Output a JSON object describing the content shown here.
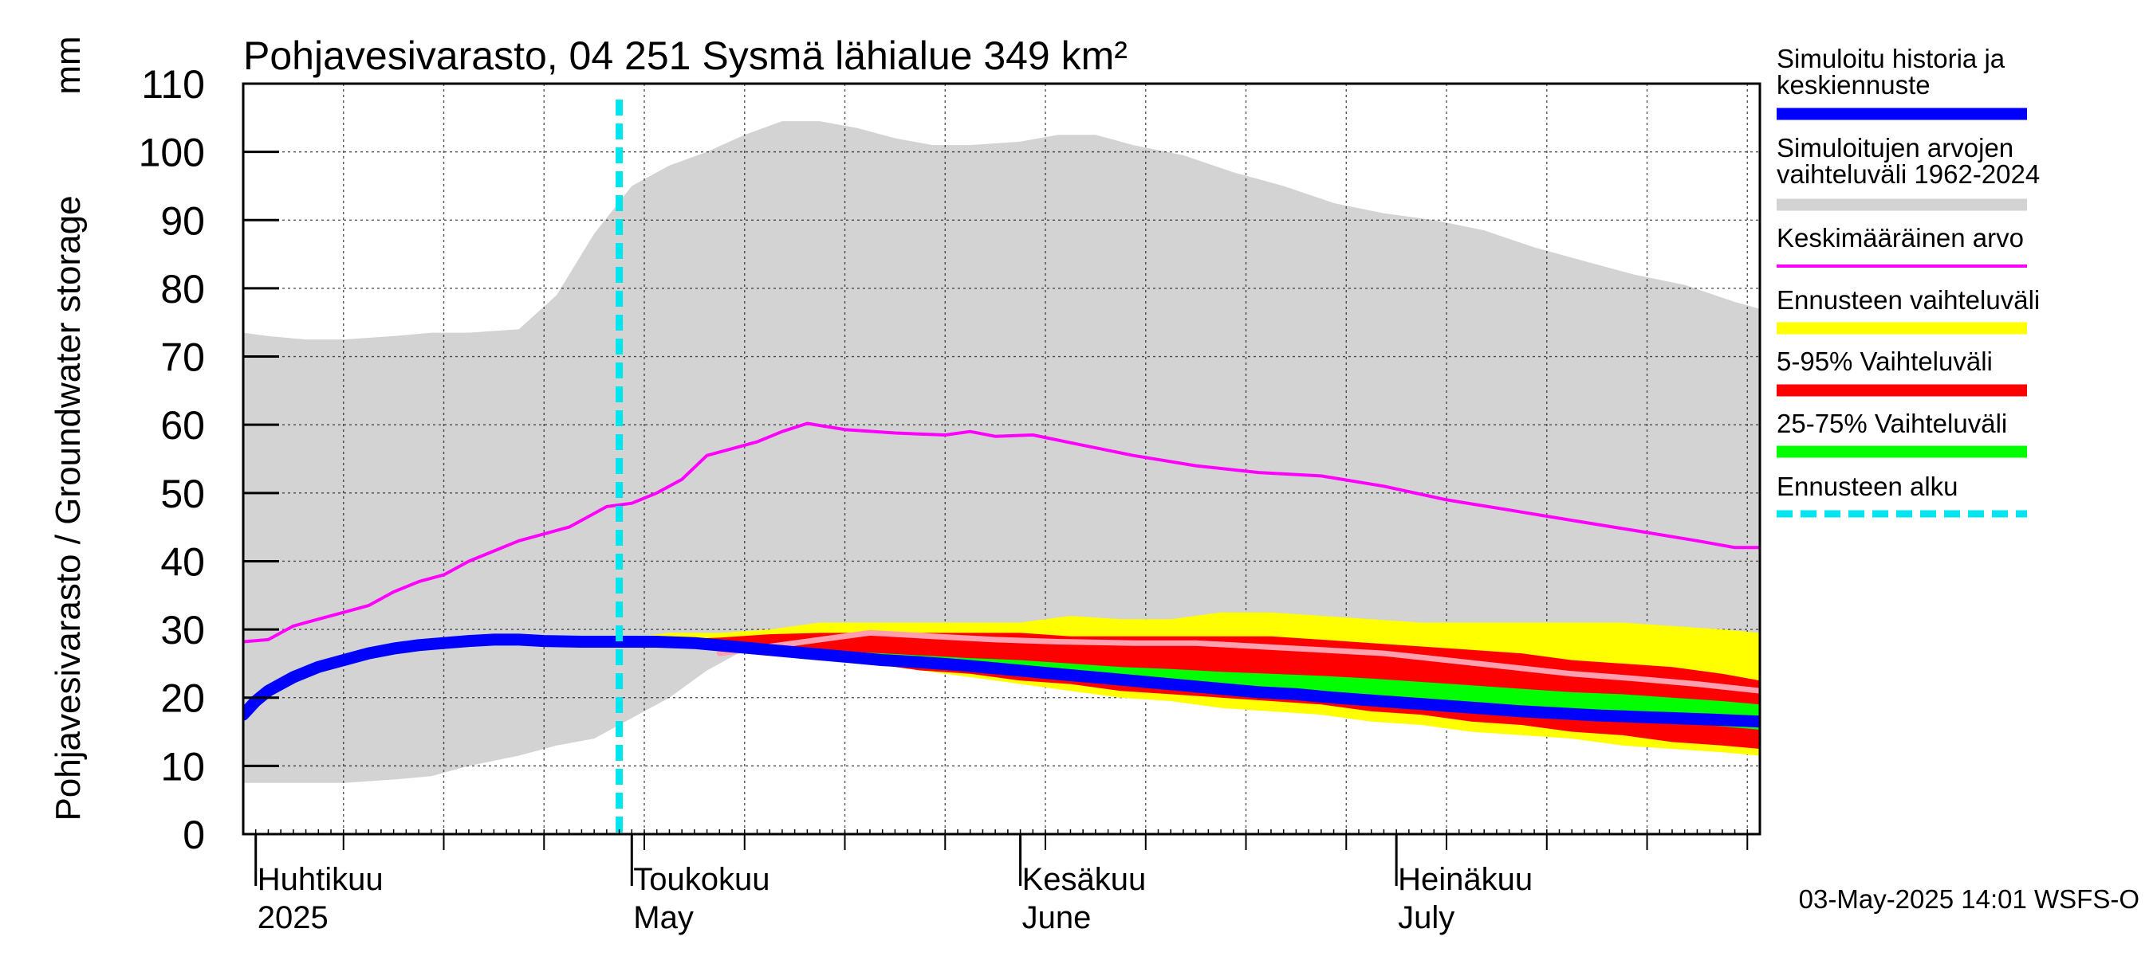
{
  "chart_data": {
    "type": "area",
    "title": "Pohjavesivarasto, 04 251 Sysmä lähialue 349 km²",
    "ylabel": "Pohjavesivarasto / Groundwater storage",
    "yunit": "mm",
    "ylim": [
      0,
      110
    ],
    "yticks": [
      0,
      10,
      20,
      30,
      40,
      50,
      60,
      70,
      80,
      90,
      100,
      110
    ],
    "xlim": [
      "2025-03-31",
      "2025-07-30"
    ],
    "grid": true,
    "legend_position": "right",
    "month_labels": [
      {
        "date": "2025-04-01",
        "fi": "Huhtikuu",
        "en": "2025"
      },
      {
        "date": "2025-05-01",
        "fi": "Toukokuu",
        "en": "May"
      },
      {
        "date": "2025-06-01",
        "fi": "Kesäkuu",
        "en": "June"
      },
      {
        "date": "2025-07-01",
        "fi": "Heinäkuu",
        "en": "July"
      }
    ],
    "forecast_start": "2025-04-30",
    "timestamp": "03-May-2025 14:01 WSFS-O",
    "colors": {
      "history": "#0000ff",
      "range": "#d3d3d3",
      "mean": "#ff00ff",
      "forecast_range": "#ffff00",
      "p5_95": "#ff0000",
      "p25_75": "#00ff00",
      "forecast_start": "#00e5ee",
      "median": "#ff9fb0"
    },
    "legend": [
      {
        "key": "history",
        "label": "Simuloitu historia ja keskiennuste",
        "style": "thick"
      },
      {
        "key": "range",
        "label": "Simuloitujen arvojen vaihteluväli 1962-2024",
        "style": "band"
      },
      {
        "key": "mean",
        "label": "Keskimääräinen arvo",
        "style": "thin"
      },
      {
        "key": "forecast_range",
        "label": "Ennusteen vaihteluväli",
        "style": "band"
      },
      {
        "key": "p5_95",
        "label": "5-95% Vaihteluväli",
        "style": "band"
      },
      {
        "key": "p25_75",
        "label": "25-75% Vaihteluväli",
        "style": "band"
      },
      {
        "key": "forecast_start",
        "label": "Ennusteen alku",
        "style": "dashed"
      }
    ],
    "range_band": {
      "name": "Simuloitujen arvojen vaihteluväli 1962-2024",
      "points": [
        [
          "2025-03-31",
          7.5,
          73.5
        ],
        [
          "2025-04-02",
          7.5,
          73
        ],
        [
          "2025-04-05",
          7.5,
          72.5
        ],
        [
          "2025-04-08",
          7.5,
          72.5
        ],
        [
          "2025-04-12",
          8,
          73
        ],
        [
          "2025-04-15",
          8.5,
          73.5
        ],
        [
          "2025-04-18",
          10,
          73.5
        ],
        [
          "2025-04-22",
          11.5,
          74
        ],
        [
          "2025-04-25",
          13,
          79
        ],
        [
          "2025-04-28",
          14,
          88
        ],
        [
          "2025-05-01",
          17,
          95
        ],
        [
          "2025-05-04",
          20,
          98
        ],
        [
          "2025-05-07",
          24,
          100
        ],
        [
          "2025-05-10",
          27,
          102.5
        ],
        [
          "2025-05-13",
          28,
          104.5
        ],
        [
          "2025-05-16",
          28,
          104.5
        ],
        [
          "2025-05-19",
          28,
          103.5
        ],
        [
          "2025-05-22",
          28,
          102
        ],
        [
          "2025-05-25",
          27.5,
          101
        ],
        [
          "2025-05-28",
          27.5,
          101
        ],
        [
          "2025-06-01",
          27,
          101.5
        ],
        [
          "2025-06-04",
          27,
          102.5
        ],
        [
          "2025-06-07",
          26.5,
          102.5
        ],
        [
          "2025-06-10",
          26.5,
          101
        ],
        [
          "2025-06-14",
          26,
          99.5
        ],
        [
          "2025-06-18",
          25.5,
          97
        ],
        [
          "2025-06-22",
          24.5,
          95
        ],
        [
          "2025-06-26",
          24,
          92.5
        ],
        [
          "2025-06-30",
          23.5,
          91
        ],
        [
          "2025-07-04",
          23,
          90
        ],
        [
          "2025-07-08",
          22,
          88.5
        ],
        [
          "2025-07-12",
          21,
          86
        ],
        [
          "2025-07-16",
          20,
          84
        ],
        [
          "2025-07-20",
          19,
          82
        ],
        [
          "2025-07-24",
          18,
          80.5
        ],
        [
          "2025-07-28",
          17,
          78
        ],
        [
          "2025-07-30",
          16.5,
          77
        ]
      ]
    },
    "forecast_band": {
      "name": "Ennusteen vaihteluväli",
      "points": [
        [
          "2025-04-30",
          28.2,
          28.5
        ],
        [
          "2025-05-04",
          28,
          29.5
        ],
        [
          "2025-05-08",
          27.5,
          29.5
        ],
        [
          "2025-05-12",
          27,
          30
        ],
        [
          "2025-05-16",
          25.5,
          31
        ],
        [
          "2025-05-20",
          25,
          31
        ],
        [
          "2025-05-24",
          24,
          31
        ],
        [
          "2025-05-28",
          23,
          31
        ],
        [
          "2025-06-01",
          22,
          31
        ],
        [
          "2025-06-05",
          21,
          32
        ],
        [
          "2025-06-09",
          20,
          31.5
        ],
        [
          "2025-06-13",
          19.5,
          31.5
        ],
        [
          "2025-06-17",
          18.5,
          32.5
        ],
        [
          "2025-06-21",
          18,
          32.5
        ],
        [
          "2025-06-25",
          17.5,
          32
        ],
        [
          "2025-06-29",
          16.5,
          31.5
        ],
        [
          "2025-07-03",
          16,
          31
        ],
        [
          "2025-07-07",
          15,
          31
        ],
        [
          "2025-07-11",
          14.5,
          31
        ],
        [
          "2025-07-15",
          14,
          31
        ],
        [
          "2025-07-19",
          13,
          31
        ],
        [
          "2025-07-23",
          12.5,
          30.5
        ],
        [
          "2025-07-27",
          12,
          30
        ],
        [
          "2025-07-30",
          11.5,
          29.5
        ]
      ]
    },
    "p5_95_band": {
      "name": "5-95% Vaihteluväli",
      "points": [
        [
          "2025-04-30",
          28.2,
          28.4
        ],
        [
          "2025-05-04",
          27.8,
          28.5
        ],
        [
          "2025-05-08",
          27.3,
          28.8
        ],
        [
          "2025-05-12",
          26.5,
          29.3
        ],
        [
          "2025-05-16",
          25.8,
          29.5
        ],
        [
          "2025-05-20",
          25,
          29.5
        ],
        [
          "2025-05-24",
          24,
          29.5
        ],
        [
          "2025-05-28",
          23.5,
          29.5
        ],
        [
          "2025-06-01",
          22.5,
          29.5
        ],
        [
          "2025-06-05",
          22,
          29
        ],
        [
          "2025-06-09",
          21,
          29
        ],
        [
          "2025-06-13",
          20.5,
          29
        ],
        [
          "2025-06-17",
          20,
          29
        ],
        [
          "2025-06-21",
          19.5,
          29
        ],
        [
          "2025-06-25",
          19,
          28.5
        ],
        [
          "2025-06-29",
          18,
          28
        ],
        [
          "2025-07-03",
          17.5,
          27.5
        ],
        [
          "2025-07-07",
          16.5,
          27
        ],
        [
          "2025-07-11",
          16,
          26.5
        ],
        [
          "2025-07-15",
          15,
          25.5
        ],
        [
          "2025-07-19",
          14.5,
          25
        ],
        [
          "2025-07-23",
          13.5,
          24.5
        ],
        [
          "2025-07-27",
          13,
          23.5
        ],
        [
          "2025-07-30",
          12.5,
          22.5
        ]
      ]
    },
    "p25_75_band": {
      "name": "25-75% Vaihteluväli",
      "points": [
        [
          "2025-04-30",
          28.2,
          28.3
        ],
        [
          "2025-05-04",
          28,
          28.2
        ],
        [
          "2025-05-08",
          27.5,
          27.8
        ],
        [
          "2025-05-12",
          26.8,
          27.3
        ],
        [
          "2025-05-16",
          26,
          26.8
        ],
        [
          "2025-05-20",
          25.3,
          26.6
        ],
        [
          "2025-05-24",
          24.7,
          26.2
        ],
        [
          "2025-05-28",
          24,
          25.8
        ],
        [
          "2025-06-01",
          23.5,
          25.5
        ],
        [
          "2025-06-05",
          23,
          25
        ],
        [
          "2025-06-09",
          22.3,
          24.5
        ],
        [
          "2025-06-13",
          21.8,
          24.2
        ],
        [
          "2025-06-17",
          21,
          23.8
        ],
        [
          "2025-06-21",
          20.5,
          23.5
        ],
        [
          "2025-06-25",
          20,
          23.2
        ],
        [
          "2025-06-29",
          19.5,
          22.8
        ],
        [
          "2025-07-03",
          19,
          22.3
        ],
        [
          "2025-07-07",
          18.5,
          21.8
        ],
        [
          "2025-07-11",
          18,
          21.3
        ],
        [
          "2025-07-15",
          17.5,
          20.8
        ],
        [
          "2025-07-19",
          17,
          20.5
        ],
        [
          "2025-07-23",
          16.5,
          20
        ],
        [
          "2025-07-27",
          15.8,
          19.5
        ],
        [
          "2025-07-30",
          15.3,
          19
        ]
      ]
    },
    "series": [
      {
        "key": "mean",
        "name": "Keskimääräinen arvo",
        "points": [
          [
            "2025-03-31",
            28.2
          ],
          [
            "2025-04-02",
            28.5
          ],
          [
            "2025-04-04",
            30.5
          ],
          [
            "2025-04-06",
            31.5
          ],
          [
            "2025-04-08",
            32.5
          ],
          [
            "2025-04-10",
            33.5
          ],
          [
            "2025-04-12",
            35.5
          ],
          [
            "2025-04-14",
            37
          ],
          [
            "2025-04-16",
            38
          ],
          [
            "2025-04-18",
            40
          ],
          [
            "2025-04-20",
            41.5
          ],
          [
            "2025-04-22",
            43
          ],
          [
            "2025-04-24",
            44
          ],
          [
            "2025-04-26",
            45
          ],
          [
            "2025-04-27",
            46
          ],
          [
            "2025-04-29",
            48
          ],
          [
            "2025-05-01",
            48.5
          ],
          [
            "2025-05-03",
            50
          ],
          [
            "2025-05-05",
            52
          ],
          [
            "2025-05-07",
            55.5
          ],
          [
            "2025-05-09",
            56.5
          ],
          [
            "2025-05-11",
            57.5
          ],
          [
            "2025-05-13",
            59
          ],
          [
            "2025-05-15",
            60.2
          ],
          [
            "2025-05-18",
            59.3
          ],
          [
            "2025-05-22",
            58.8
          ],
          [
            "2025-05-26",
            58.5
          ],
          [
            "2025-05-28",
            59
          ],
          [
            "2025-05-30",
            58.3
          ],
          [
            "2025-06-02",
            58.5
          ],
          [
            "2025-06-06",
            57
          ],
          [
            "2025-06-10",
            55.5
          ],
          [
            "2025-06-15",
            54
          ],
          [
            "2025-06-20",
            53
          ],
          [
            "2025-06-25",
            52.5
          ],
          [
            "2025-06-30",
            51
          ],
          [
            "2025-07-05",
            49
          ],
          [
            "2025-07-10",
            47.5
          ],
          [
            "2025-07-15",
            46
          ],
          [
            "2025-07-20",
            44.5
          ],
          [
            "2025-07-25",
            43
          ],
          [
            "2025-07-28",
            42
          ],
          [
            "2025-07-30",
            42
          ]
        ]
      },
      {
        "key": "median",
        "name": "",
        "points": [
          [
            "2025-05-08",
            26.5
          ],
          [
            "2025-05-12",
            27.5
          ],
          [
            "2025-05-16",
            28.5
          ],
          [
            "2025-05-20",
            29.5
          ],
          [
            "2025-05-25",
            29
          ],
          [
            "2025-05-30",
            28.5
          ],
          [
            "2025-06-04",
            28.2
          ],
          [
            "2025-06-10",
            28
          ],
          [
            "2025-06-15",
            28
          ],
          [
            "2025-06-20",
            27.5
          ],
          [
            "2025-06-25",
            27
          ],
          [
            "2025-06-30",
            26.5
          ],
          [
            "2025-07-05",
            25.5
          ],
          [
            "2025-07-10",
            24.5
          ],
          [
            "2025-07-15",
            23.5
          ],
          [
            "2025-07-20",
            22.8
          ],
          [
            "2025-07-25",
            22
          ],
          [
            "2025-07-30",
            21
          ]
        ]
      },
      {
        "key": "history",
        "name": "Simuloitu historia ja keskiennuste",
        "points": [
          [
            "2025-03-31",
            17.5
          ],
          [
            "2025-04-01",
            19.5
          ],
          [
            "2025-04-02",
            21
          ],
          [
            "2025-04-04",
            23
          ],
          [
            "2025-04-06",
            24.5
          ],
          [
            "2025-04-08",
            25.5
          ],
          [
            "2025-04-10",
            26.5
          ],
          [
            "2025-04-12",
            27.2
          ],
          [
            "2025-04-14",
            27.7
          ],
          [
            "2025-04-16",
            28
          ],
          [
            "2025-04-18",
            28.3
          ],
          [
            "2025-04-20",
            28.5
          ],
          [
            "2025-04-22",
            28.5
          ],
          [
            "2025-04-24",
            28.3
          ],
          [
            "2025-04-27",
            28.2
          ],
          [
            "2025-04-30",
            28.2
          ],
          [
            "2025-05-03",
            28.2
          ],
          [
            "2025-05-06",
            28
          ],
          [
            "2025-05-09",
            27.5
          ],
          [
            "2025-05-12",
            27
          ],
          [
            "2025-05-15",
            26.5
          ],
          [
            "2025-05-18",
            26
          ],
          [
            "2025-05-21",
            25.5
          ],
          [
            "2025-05-24",
            25.2
          ],
          [
            "2025-05-27",
            24.8
          ],
          [
            "2025-05-30",
            24.3
          ],
          [
            "2025-06-02",
            23.8
          ],
          [
            "2025-06-05",
            23.3
          ],
          [
            "2025-06-08",
            22.8
          ],
          [
            "2025-06-11",
            22.3
          ],
          [
            "2025-06-14",
            21.8
          ],
          [
            "2025-06-17",
            21.3
          ],
          [
            "2025-06-20",
            20.8
          ],
          [
            "2025-06-23",
            20.5
          ],
          [
            "2025-06-26",
            20
          ],
          [
            "2025-06-29",
            19.6
          ],
          [
            "2025-07-02",
            19.2
          ],
          [
            "2025-07-05",
            18.8
          ],
          [
            "2025-07-08",
            18.4
          ],
          [
            "2025-07-11",
            18
          ],
          [
            "2025-07-14",
            17.7
          ],
          [
            "2025-07-17",
            17.4
          ],
          [
            "2025-07-20",
            17.2
          ],
          [
            "2025-07-23",
            17
          ],
          [
            "2025-07-26",
            16.8
          ],
          [
            "2025-07-30",
            16.5
          ]
        ]
      }
    ]
  }
}
